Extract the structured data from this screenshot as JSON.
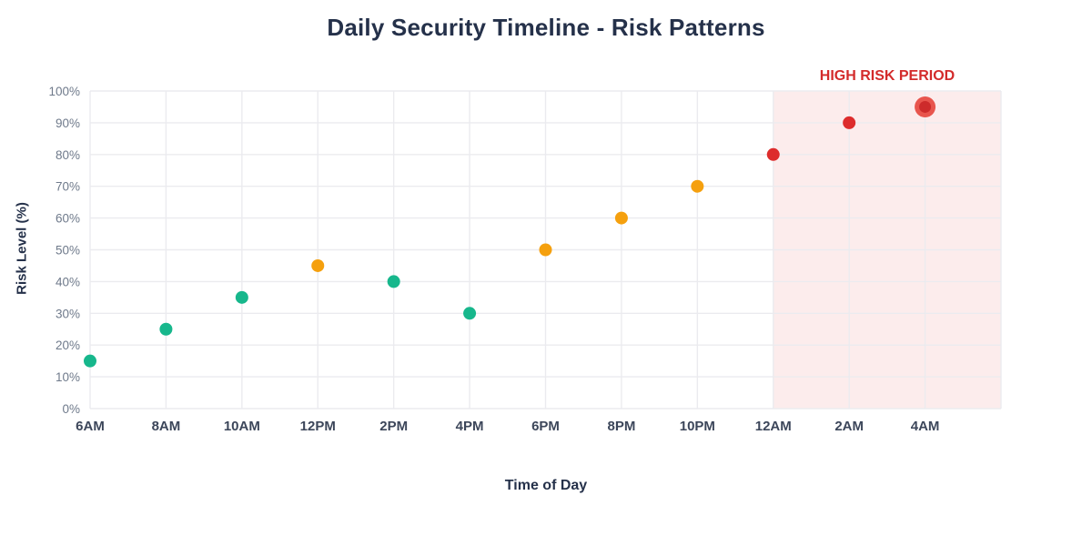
{
  "page": {
    "title": "Daily Security Timeline - Risk Patterns"
  },
  "chart_data": {
    "type": "scatter",
    "title": "Daily Security Timeline - Risk Patterns",
    "xlabel": "Time of Day",
    "ylabel": "Risk Level (%)",
    "x_tick_labels": [
      "6AM",
      "8AM",
      "10AM",
      "12PM",
      "2PM",
      "4PM",
      "6PM",
      "8PM",
      "10PM",
      "12AM",
      "2AM",
      "4AM"
    ],
    "y_tick_values": [
      0,
      10,
      20,
      30,
      40,
      50,
      60,
      70,
      80,
      90,
      100
    ],
    "y_tick_suffix": "%",
    "ylim": [
      0,
      100
    ],
    "grid": true,
    "legend": "none",
    "points": [
      {
        "time": "6AM",
        "risk": 15,
        "level": "low"
      },
      {
        "time": "8AM",
        "risk": 25,
        "level": "low"
      },
      {
        "time": "10AM",
        "risk": 35,
        "level": "low"
      },
      {
        "time": "12PM",
        "risk": 45,
        "level": "medium"
      },
      {
        "time": "2PM",
        "risk": 40,
        "level": "low"
      },
      {
        "time": "4PM",
        "risk": 30,
        "level": "low"
      },
      {
        "time": "6PM",
        "risk": 50,
        "level": "medium"
      },
      {
        "time": "8PM",
        "risk": 60,
        "level": "medium"
      },
      {
        "time": "10PM",
        "risk": 70,
        "level": "medium"
      },
      {
        "time": "12AM",
        "risk": 80,
        "level": "high"
      },
      {
        "time": "2AM",
        "risk": 90,
        "level": "high"
      },
      {
        "time": "4AM",
        "risk": 95,
        "level": "high",
        "highlight": true
      }
    ],
    "level_colors": {
      "low": "#17b78c",
      "medium": "#f5a00e",
      "high": "#dd2c2c"
    },
    "highlight_colors": {
      "outer": "#e8554d",
      "inner": "#cd2b2b"
    },
    "high_risk_region": {
      "label": "HIGH RISK PERIOD",
      "from": "12AM",
      "to": "end-of-axis",
      "fill": "#fcecec",
      "label_color": "#d32b2b"
    },
    "style": {
      "grid_color": "#ebebef",
      "y_tick_color": "#6f7a8b",
      "x_tick_color": "#3c465a",
      "title_color": "#25314a"
    }
  }
}
